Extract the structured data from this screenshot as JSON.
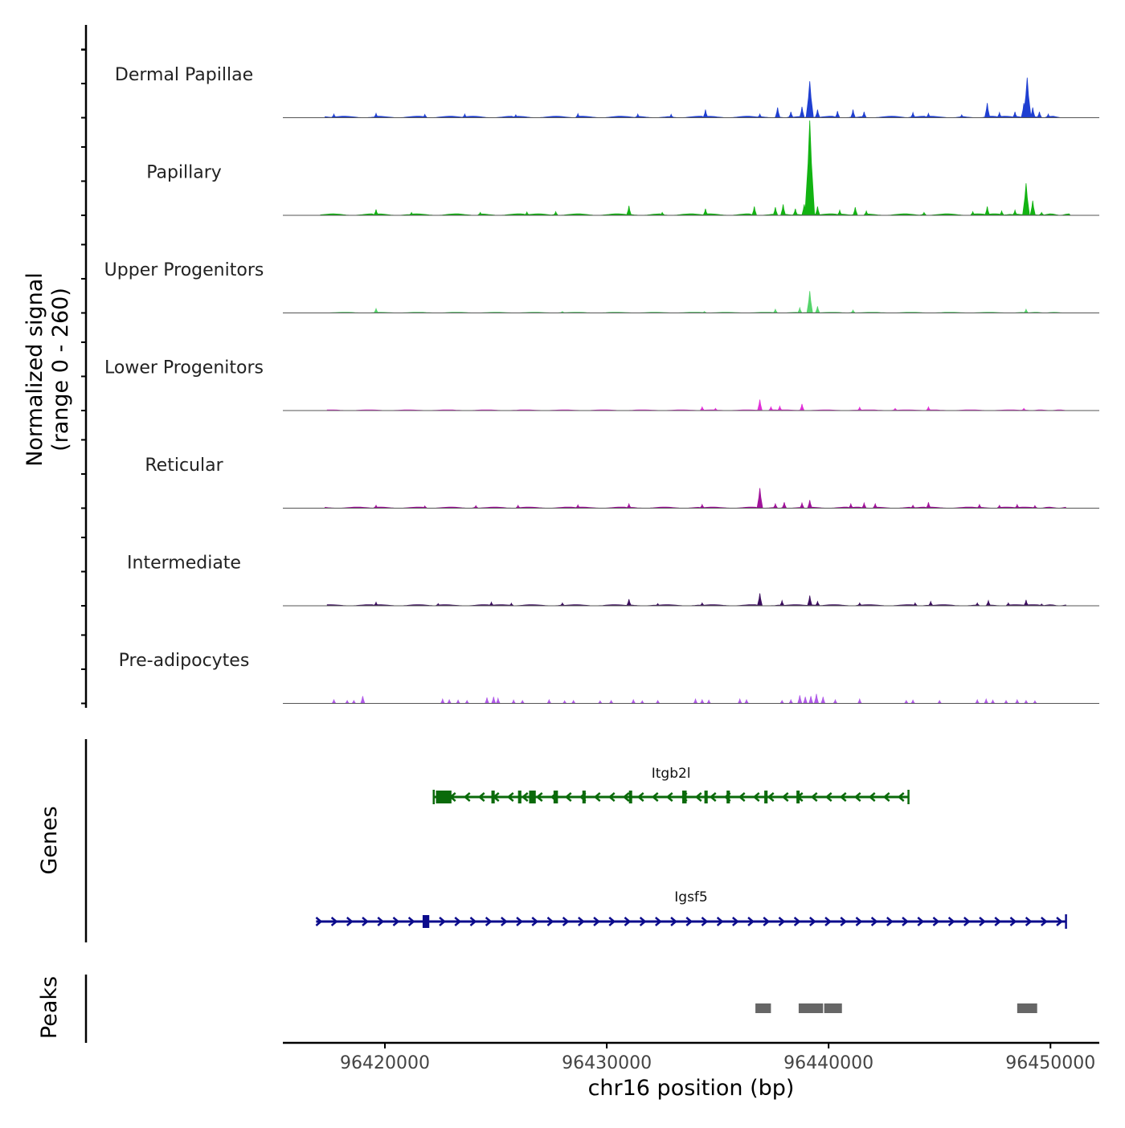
{
  "chart_data": {
    "type": "area",
    "title": "",
    "xlabel": "chr16 position (bp)",
    "ylabel_line1": "Normalized signal",
    "ylabel_line2": "(range 0 - 260)",
    "ylim": [
      0,
      260
    ],
    "xlim": [
      96415400,
      96452200
    ],
    "x_ticks": [
      96420000,
      96430000,
      96440000,
      96450000
    ],
    "x_tick_labels": [
      "96420000",
      "96430000",
      "96440000",
      "96450000"
    ],
    "panel_labels": {
      "genes": "Genes",
      "peaks": "Peaks"
    },
    "tracks": [
      {
        "name": "Dermal Papillae",
        "color": "#1f3fd1",
        "baseline": 4,
        "start": 96417300,
        "end": 96450700,
        "peaks": [
          {
            "x": 96417700,
            "y": 10
          },
          {
            "x": 96419600,
            "y": 12
          },
          {
            "x": 96421800,
            "y": 9
          },
          {
            "x": 96423600,
            "y": 10
          },
          {
            "x": 96425900,
            "y": 8
          },
          {
            "x": 96428700,
            "y": 11
          },
          {
            "x": 96431400,
            "y": 10
          },
          {
            "x": 96432900,
            "y": 9
          },
          {
            "x": 96434450,
            "y": 22
          },
          {
            "x": 96436900,
            "y": 10
          },
          {
            "x": 96437700,
            "y": 28
          },
          {
            "x": 96438300,
            "y": 16
          },
          {
            "x": 96438800,
            "y": 30
          },
          {
            "x": 96439150,
            "y": 100
          },
          {
            "x": 96439500,
            "y": 22
          },
          {
            "x": 96440400,
            "y": 18
          },
          {
            "x": 96441100,
            "y": 22
          },
          {
            "x": 96441600,
            "y": 16
          },
          {
            "x": 96443800,
            "y": 14
          },
          {
            "x": 96444500,
            "y": 12
          },
          {
            "x": 96446000,
            "y": 8
          },
          {
            "x": 96447150,
            "y": 40
          },
          {
            "x": 96447700,
            "y": 14
          },
          {
            "x": 96448400,
            "y": 16
          },
          {
            "x": 96448800,
            "y": 40
          },
          {
            "x": 96448950,
            "y": 110
          },
          {
            "x": 96449200,
            "y": 28
          },
          {
            "x": 96449500,
            "y": 16
          },
          {
            "x": 96449900,
            "y": 10
          }
        ]
      },
      {
        "name": "Papillary",
        "color": "#12b312",
        "baseline": 4,
        "start": 96417100,
        "end": 96450900,
        "peaks": [
          {
            "x": 96419600,
            "y": 16
          },
          {
            "x": 96421200,
            "y": 8
          },
          {
            "x": 96424300,
            "y": 8
          },
          {
            "x": 96426400,
            "y": 9
          },
          {
            "x": 96427700,
            "y": 10
          },
          {
            "x": 96431000,
            "y": 26
          },
          {
            "x": 96432500,
            "y": 8
          },
          {
            "x": 96434450,
            "y": 18
          },
          {
            "x": 96436650,
            "y": 24
          },
          {
            "x": 96437600,
            "y": 22
          },
          {
            "x": 96437950,
            "y": 30
          },
          {
            "x": 96438500,
            "y": 18
          },
          {
            "x": 96438900,
            "y": 30
          },
          {
            "x": 96439150,
            "y": 260
          },
          {
            "x": 96439500,
            "y": 24
          },
          {
            "x": 96440500,
            "y": 14
          },
          {
            "x": 96441200,
            "y": 22
          },
          {
            "x": 96441700,
            "y": 12
          },
          {
            "x": 96444300,
            "y": 8
          },
          {
            "x": 96446500,
            "y": 10
          },
          {
            "x": 96447150,
            "y": 24
          },
          {
            "x": 96447800,
            "y": 12
          },
          {
            "x": 96448400,
            "y": 14
          },
          {
            "x": 96448900,
            "y": 88
          },
          {
            "x": 96449200,
            "y": 40
          },
          {
            "x": 96449600,
            "y": 8
          }
        ]
      },
      {
        "name": "Upper Progenitors",
        "color": "#55d46b",
        "baseline": 2,
        "start": 96417200,
        "end": 96450700,
        "peaks": [
          {
            "x": 96419600,
            "y": 12
          },
          {
            "x": 96428000,
            "y": 4
          },
          {
            "x": 96434400,
            "y": 4
          },
          {
            "x": 96437600,
            "y": 10
          },
          {
            "x": 96438700,
            "y": 14
          },
          {
            "x": 96439150,
            "y": 60
          },
          {
            "x": 96439500,
            "y": 18
          },
          {
            "x": 96441100,
            "y": 8
          },
          {
            "x": 96448900,
            "y": 10
          }
        ]
      },
      {
        "name": "Lower Progenitors",
        "color": "#e12fd8",
        "baseline": 2,
        "start": 96417400,
        "end": 96450700,
        "peaks": [
          {
            "x": 96434300,
            "y": 10
          },
          {
            "x": 96434900,
            "y": 6
          },
          {
            "x": 96436900,
            "y": 30
          },
          {
            "x": 96437400,
            "y": 10
          },
          {
            "x": 96437800,
            "y": 12
          },
          {
            "x": 96438800,
            "y": 18
          },
          {
            "x": 96441400,
            "y": 9
          },
          {
            "x": 96443000,
            "y": 6
          },
          {
            "x": 96444500,
            "y": 10
          },
          {
            "x": 96448800,
            "y": 6
          }
        ]
      },
      {
        "name": "Reticular",
        "color": "#a0139a",
        "baseline": 3,
        "start": 96417300,
        "end": 96450700,
        "peaks": [
          {
            "x": 96419600,
            "y": 8
          },
          {
            "x": 96421800,
            "y": 6
          },
          {
            "x": 96424100,
            "y": 7
          },
          {
            "x": 96426000,
            "y": 8
          },
          {
            "x": 96428700,
            "y": 9
          },
          {
            "x": 96431000,
            "y": 12
          },
          {
            "x": 96434300,
            "y": 10
          },
          {
            "x": 96436900,
            "y": 55
          },
          {
            "x": 96437600,
            "y": 12
          },
          {
            "x": 96438000,
            "y": 16
          },
          {
            "x": 96438800,
            "y": 14
          },
          {
            "x": 96439150,
            "y": 22
          },
          {
            "x": 96441000,
            "y": 12
          },
          {
            "x": 96441600,
            "y": 14
          },
          {
            "x": 96442100,
            "y": 12
          },
          {
            "x": 96443800,
            "y": 8
          },
          {
            "x": 96444500,
            "y": 16
          },
          {
            "x": 96446800,
            "y": 10
          },
          {
            "x": 96447700,
            "y": 8
          },
          {
            "x": 96448500,
            "y": 10
          },
          {
            "x": 96449300,
            "y": 7
          }
        ]
      },
      {
        "name": "Intermediate",
        "color": "#3c0e5e",
        "baseline": 3,
        "start": 96417400,
        "end": 96450700,
        "peaks": [
          {
            "x": 96419600,
            "y": 10
          },
          {
            "x": 96422400,
            "y": 6
          },
          {
            "x": 96424800,
            "y": 10
          },
          {
            "x": 96425700,
            "y": 7
          },
          {
            "x": 96428000,
            "y": 8
          },
          {
            "x": 96431000,
            "y": 18
          },
          {
            "x": 96432300,
            "y": 6
          },
          {
            "x": 96434300,
            "y": 8
          },
          {
            "x": 96436900,
            "y": 34
          },
          {
            "x": 96437900,
            "y": 14
          },
          {
            "x": 96439150,
            "y": 28
          },
          {
            "x": 96439500,
            "y": 12
          },
          {
            "x": 96441400,
            "y": 8
          },
          {
            "x": 96443900,
            "y": 8
          },
          {
            "x": 96444600,
            "y": 12
          },
          {
            "x": 96446700,
            "y": 8
          },
          {
            "x": 96447200,
            "y": 14
          },
          {
            "x": 96448100,
            "y": 8
          },
          {
            "x": 96448900,
            "y": 16
          },
          {
            "x": 96449600,
            "y": 5
          }
        ]
      },
      {
        "name": "Pre-adipocytes",
        "color": "#b05ae8",
        "baseline": 0,
        "start": 96417300,
        "end": 96450700,
        "peaks": [
          {
            "x": 96417700,
            "y": 10
          },
          {
            "x": 96418300,
            "y": 8
          },
          {
            "x": 96418600,
            "y": 8
          },
          {
            "x": 96419000,
            "y": 20
          },
          {
            "x": 96422600,
            "y": 12
          },
          {
            "x": 96422900,
            "y": 10
          },
          {
            "x": 96423300,
            "y": 9
          },
          {
            "x": 96423700,
            "y": 8
          },
          {
            "x": 96424600,
            "y": 16
          },
          {
            "x": 96424900,
            "y": 18
          },
          {
            "x": 96425100,
            "y": 14
          },
          {
            "x": 96425800,
            "y": 9
          },
          {
            "x": 96426200,
            "y": 8
          },
          {
            "x": 96427400,
            "y": 10
          },
          {
            "x": 96428100,
            "y": 7
          },
          {
            "x": 96428500,
            "y": 8
          },
          {
            "x": 96429700,
            "y": 7
          },
          {
            "x": 96430200,
            "y": 8
          },
          {
            "x": 96431200,
            "y": 10
          },
          {
            "x": 96431600,
            "y": 7
          },
          {
            "x": 96432300,
            "y": 8
          },
          {
            "x": 96434000,
            "y": 12
          },
          {
            "x": 96434300,
            "y": 10
          },
          {
            "x": 96434600,
            "y": 9
          },
          {
            "x": 96436000,
            "y": 12
          },
          {
            "x": 96436300,
            "y": 10
          },
          {
            "x": 96437900,
            "y": 8
          },
          {
            "x": 96438300,
            "y": 10
          },
          {
            "x": 96438700,
            "y": 22
          },
          {
            "x": 96438950,
            "y": 18
          },
          {
            "x": 96439200,
            "y": 20
          },
          {
            "x": 96439450,
            "y": 26
          },
          {
            "x": 96439750,
            "y": 18
          },
          {
            "x": 96440300,
            "y": 10
          },
          {
            "x": 96441400,
            "y": 12
          },
          {
            "x": 96443500,
            "y": 8
          },
          {
            "x": 96443800,
            "y": 9
          },
          {
            "x": 96445000,
            "y": 8
          },
          {
            "x": 96446700,
            "y": 10
          },
          {
            "x": 96447100,
            "y": 12
          },
          {
            "x": 96447400,
            "y": 9
          },
          {
            "x": 96448000,
            "y": 8
          },
          {
            "x": 96448500,
            "y": 10
          },
          {
            "x": 96448900,
            "y": 8
          },
          {
            "x": 96449300,
            "y": 7
          }
        ]
      }
    ],
    "genes": [
      {
        "name": "Itgb2l",
        "color": "#0a6a0a",
        "strand": "-",
        "start": 96422200,
        "end": 96443600,
        "exons": [
          [
            96422300,
            96423000
          ],
          [
            96424800,
            96424950
          ],
          [
            96426000,
            96426150
          ],
          [
            96426500,
            96426800
          ],
          [
            96427600,
            96427800
          ],
          [
            96428900,
            96429050
          ],
          [
            96431000,
            96431100
          ],
          [
            96433400,
            96433600
          ],
          [
            96434400,
            96434550
          ],
          [
            96435400,
            96435550
          ],
          [
            96437100,
            96437250
          ],
          [
            96438550,
            96438650
          ]
        ]
      },
      {
        "name": "Igsf5",
        "color": "#0b0b8c",
        "strand": "+",
        "start": 96416900,
        "end": 96450700,
        "exons": [
          [
            96421700,
            96422000
          ]
        ]
      }
    ],
    "peaks": [
      [
        96436700,
        96437400
      ],
      [
        96438650,
        96439750
      ],
      [
        96439800,
        96440600
      ],
      [
        96448500,
        96449400
      ]
    ]
  }
}
